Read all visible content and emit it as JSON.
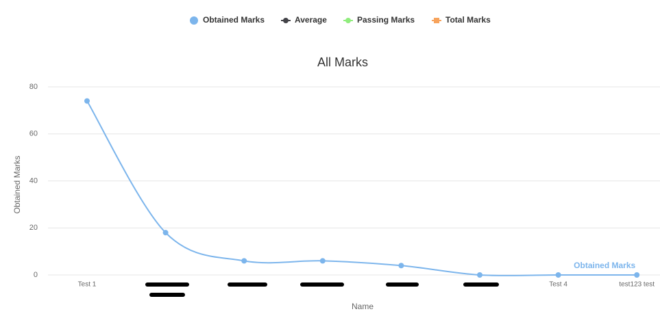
{
  "chart_data": {
    "type": "line",
    "title": "All Marks",
    "x_label": "Name",
    "y_label": "Obtained Marks",
    "categories": [
      "Test 1",
      null,
      null,
      null,
      null,
      null,
      "Test 4",
      "test123 test"
    ],
    "series": [
      {
        "name": "Obtained Marks",
        "color": "#7cb5ec",
        "values": [
          74,
          18,
          6,
          6,
          4,
          0,
          0,
          0
        ]
      },
      {
        "name": "Average",
        "color": "#434348",
        "values": [
          null,
          null,
          null,
          null,
          null,
          null,
          null,
          null
        ]
      },
      {
        "name": "Passing Marks",
        "color": "#90ed7d",
        "values": [
          null,
          null,
          null,
          null,
          null,
          null,
          null,
          null
        ]
      },
      {
        "name": "Total Marks",
        "color": "#f7a35c",
        "values": [
          null,
          null,
          null,
          null,
          null,
          null,
          null,
          null
        ]
      }
    ],
    "ylim": [
      0,
      80
    ],
    "yticks": [
      0,
      20,
      40,
      60,
      80
    ],
    "grid": true
  }
}
